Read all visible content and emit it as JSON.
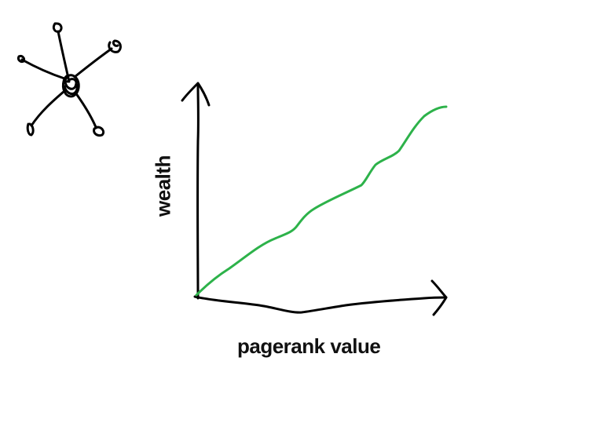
{
  "diagram": {
    "x_axis_label": "pagerank value",
    "y_axis_label": "wealth",
    "line_color": "#2db24a",
    "ink_color": "#000000",
    "icon": "hub-network-icon"
  }
}
